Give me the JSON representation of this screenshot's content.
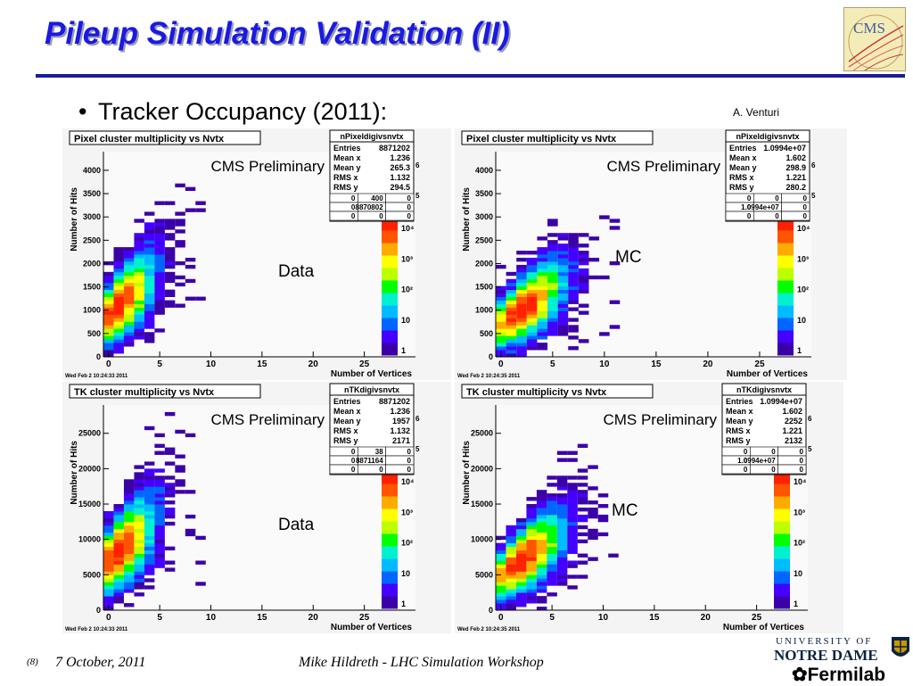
{
  "slide": {
    "title": "Pileup Simulation Validation (II)",
    "bullet": "Tracker Occupancy (2011):",
    "author": "A. Venturi"
  },
  "logos": {
    "cms": "CMS",
    "notre_dame_line1": "UNIVERSITY OF",
    "notre_dame_line2": "NOTRE DAME",
    "fermilab": "Fermilab"
  },
  "footer": {
    "page": "(8)",
    "date": "7 October, 2011",
    "presenter": "Mike Hildreth  - LHC Simulation Workshop"
  },
  "colors": {
    "title": "#1a1ae0",
    "rule": "#1a1a9a",
    "palette": [
      "#3c00a8",
      "#4400ff",
      "#0066ff",
      "#00bbff",
      "#00f0d0",
      "#00ff00",
      "#bbff00",
      "#ffff00",
      "#ffaa00",
      "#ff5500",
      "#ff2200"
    ]
  },
  "chart_data": [
    {
      "type": "heatmap",
      "title": "Pixel cluster multiplicity vs Nvtx",
      "xlabel": "Number of Vertices",
      "ylabel": "Number of Hits",
      "xlim": [
        -0.5,
        30
      ],
      "ylim": [
        0,
        4400
      ],
      "xticks": [
        "0",
        "5",
        "10",
        "15",
        "20",
        "25"
      ],
      "yticks": [
        "0",
        "500",
        "1000",
        "1500",
        "2000",
        "2500",
        "3000",
        "3500",
        "4000"
      ],
      "zticks": [
        "1",
        "10",
        "10²",
        "10³",
        "10⁴"
      ],
      "annotation": "CMS Preliminary",
      "label": "Data",
      "timestamp": "Wed Feb  2 10:24:33 2011",
      "stats": {
        "name": "nPixeldigivsnvtx",
        "rows": [
          [
            "Entries",
            "8871202"
          ],
          [
            "Mean x",
            "1.236"
          ],
          [
            "Mean y",
            "265.3"
          ],
          [
            "RMS x",
            "1.132"
          ],
          [
            "RMS y",
            "294.5"
          ]
        ],
        "grid": [
          [
            "0",
            "400",
            "0"
          ],
          [
            "0",
            "8870802",
            "0"
          ],
          [
            "0",
            "0",
            "0"
          ]
        ]
      },
      "y_exp_label": "6",
      "z_exp_label": "5",
      "profile": {
        "kind": "data",
        "peak_x": 1,
        "y_center": 900,
        "y_spread_base": 350,
        "y_spread_slope": 40,
        "y_slope": 200,
        "x_max": 9
      }
    },
    {
      "type": "heatmap",
      "title": "Pixel cluster multiplicity vs Nvtx",
      "xlabel": "Number of Vertices",
      "ylabel": "Number of Hits",
      "xlim": [
        -0.5,
        30
      ],
      "ylim": [
        0,
        4400
      ],
      "xticks": [
        "0",
        "5",
        "10",
        "15",
        "20",
        "25"
      ],
      "yticks": [
        "0",
        "500",
        "1000",
        "1500",
        "2000",
        "2500",
        "3000",
        "3500",
        "4000"
      ],
      "zticks": [
        "1",
        "10",
        "10²",
        "10³",
        "10⁴"
      ],
      "annotation": "CMS Preliminary",
      "label": "MC",
      "timestamp": "Wed Feb  2 10:24:35 2011",
      "stats": {
        "name": "nPixeldigivsnvtx",
        "rows": [
          [
            "Entries",
            "1.0994e+07"
          ],
          [
            "Mean x",
            "1.602"
          ],
          [
            "Mean y",
            "298.9"
          ],
          [
            "RMS x",
            "1.221"
          ],
          [
            "RMS y",
            "280.2"
          ]
        ],
        "grid": [
          [
            "0",
            "0",
            "0"
          ],
          [
            "0",
            "1.0994e+07",
            "0"
          ],
          [
            "0",
            "0",
            "0"
          ]
        ]
      },
      "y_exp_label": "6",
      "z_exp_label": "5",
      "profile": {
        "kind": "mc",
        "peak_x": 2,
        "y_center": 700,
        "y_spread_base": 300,
        "y_spread_slope": 30,
        "y_slope": 150,
        "x_max": 11
      }
    },
    {
      "type": "heatmap",
      "title": "TK cluster multiplicity vs Nvtx",
      "xlabel": "Number of Vertices",
      "ylabel": "Number of Hits",
      "xlim": [
        -0.5,
        30
      ],
      "ylim": [
        0,
        29000
      ],
      "xticks": [
        "0",
        "5",
        "10",
        "15",
        "20",
        "25"
      ],
      "yticks": [
        "0",
        "5000",
        "10000",
        "15000",
        "20000",
        "25000"
      ],
      "zticks": [
        "1",
        "10",
        "10²",
        "10³",
        "10⁴"
      ],
      "annotation": "CMS Preliminary",
      "label": "Data",
      "timestamp": "Wed Feb  2 10:24:33 2011",
      "stats": {
        "name": "nTKdigivsnvtx",
        "rows": [
          [
            "Entries",
            "8871202"
          ],
          [
            "Mean x",
            "1.236"
          ],
          [
            "Mean y",
            "1957"
          ],
          [
            "RMS x",
            "1.132"
          ],
          [
            "RMS y",
            "2171"
          ]
        ],
        "grid": [
          [
            "0",
            "38",
            "0"
          ],
          [
            "0",
            "8871164",
            "0"
          ],
          [
            "0",
            "0",
            "0"
          ]
        ]
      },
      "y_exp_label": "6",
      "z_exp_label": "5",
      "profile": {
        "kind": "data",
        "peak_x": 1,
        "y_center": 7000,
        "y_spread_base": 2500,
        "y_spread_slope": 250,
        "y_slope": 1300,
        "x_max": 9
      }
    },
    {
      "type": "heatmap",
      "title": "TK cluster multiplicity vs Nvtx",
      "xlabel": "Number of Vertices",
      "ylabel": "Number of Hits",
      "xlim": [
        -0.5,
        30
      ],
      "ylim": [
        0,
        29000
      ],
      "xticks": [
        "0",
        "5",
        "10",
        "15",
        "20",
        "25"
      ],
      "yticks": [
        "0",
        "5000",
        "10000",
        "15000",
        "20000",
        "25000"
      ],
      "zticks": [
        "1",
        "10",
        "10²",
        "10³",
        "10⁴"
      ],
      "annotation": "CMS Preliminary",
      "label": "MC",
      "timestamp": "Wed Feb  2 10:24:35 2011",
      "stats": {
        "name": "nTKdigivsnvtx",
        "rows": [
          [
            "Entries",
            "1.0994e+07"
          ],
          [
            "Mean x",
            "1.602"
          ],
          [
            "Mean y",
            "2252"
          ],
          [
            "RMS x",
            "1.221"
          ],
          [
            "RMS y",
            "2132"
          ]
        ],
        "grid": [
          [
            "0",
            "0",
            "0"
          ],
          [
            "0",
            "1.0994e+07",
            "0"
          ],
          [
            "0",
            "0",
            "0"
          ]
        ]
      },
      "y_exp_label": "6",
      "z_exp_label": "5",
      "profile": {
        "kind": "mc",
        "peak_x": 2,
        "y_center": 5000,
        "y_spread_base": 2000,
        "y_spread_slope": 200,
        "y_slope": 1000,
        "x_max": 11
      }
    }
  ]
}
